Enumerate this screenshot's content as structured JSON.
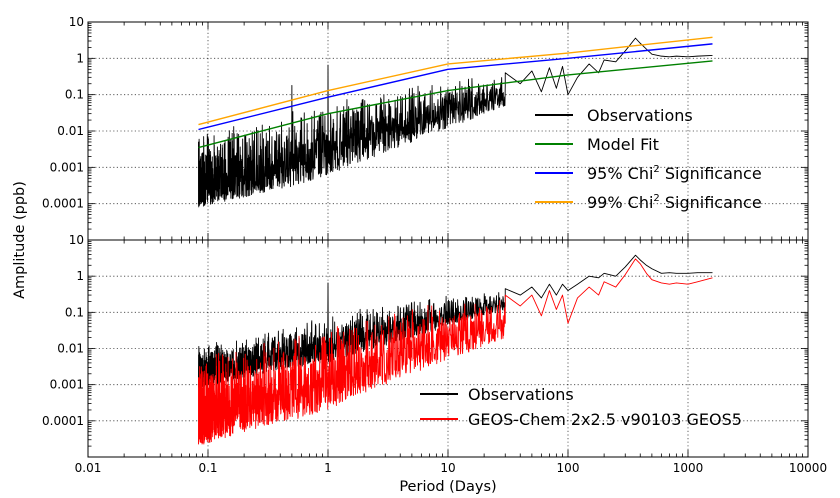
{
  "chart_data": [
    {
      "type": "line",
      "panel": "top",
      "log_x": true,
      "log_y": true,
      "xlim": [
        0.01,
        10000
      ],
      "ylim": [
        1e-05,
        10
      ],
      "grid": true,
      "x_tick_labels": [
        "0.01",
        "0.1",
        "1",
        "10",
        "100",
        "1000",
        "10000"
      ],
      "y_tick_labels": [
        "0.0001",
        "0.001",
        "0.01",
        "0.1",
        "1",
        "10"
      ],
      "xlabel": "Period (Days)",
      "ylabel": "Amplitude (ppb)",
      "legend_position": "lower-right",
      "series": [
        {
          "name": "Observations",
          "color": "#000000",
          "kind": "noisy-spectrum",
          "x_range": [
            0.0833,
            1600
          ],
          "envelope": {
            "x": [
              0.0833,
              0.2,
              0.5,
              1,
              2,
              5,
              10,
              15,
              20,
              30
            ],
            "high": [
              0.008,
              0.016,
              0.035,
              0.06,
              0.11,
              0.2,
              0.28,
              0.32,
              0.35,
              0.38
            ],
            "low": [
              8e-05,
              0.00015,
              0.0003,
              0.0006,
              0.0015,
              0.005,
              0.012,
              0.02,
              0.03,
              0.05
            ]
          },
          "spikes": [
            {
              "x": 0.5,
              "y": 0.18
            },
            {
              "x": 1.0,
              "y": 0.65
            }
          ],
          "tail": {
            "x": [
              30,
              40,
              50,
              60,
              70,
              80,
              90,
              100,
              120,
              150,
              180,
              200,
              250,
              300,
              365,
              400,
              450,
              500,
              600,
              700,
              800,
              1000,
              1200,
              1600
            ],
            "y": [
              0.4,
              0.2,
              0.45,
              0.12,
              0.55,
              0.15,
              0.6,
              0.1,
              0.3,
              0.7,
              0.4,
              0.9,
              0.8,
              1.6,
              3.6,
              2.6,
              1.8,
              1.3,
              1.15,
              1.1,
              1.15,
              1.1,
              1.15,
              1.2
            ]
          }
        },
        {
          "name": "Model Fit",
          "color": "#008000",
          "x": [
            0.0833,
            1,
            10,
            100,
            1600
          ],
          "y": [
            0.0035,
            0.03,
            0.13,
            0.35,
            0.85
          ]
        },
        {
          "name": "95% Chi² Significance",
          "legend_label_base": "95% Chi",
          "legend_label_sup": "2",
          "legend_label_tail": " Significance",
          "color": "#0000ff",
          "x": [
            0.0833,
            1,
            10,
            100,
            1600
          ],
          "y": [
            0.011,
            0.085,
            0.5,
            1.0,
            2.5
          ]
        },
        {
          "name": "99% Chi² Significance",
          "legend_label_base": "99% Chi",
          "legend_label_sup": "2",
          "legend_label_tail": " Significance",
          "color": "#ffa500",
          "x": [
            0.0833,
            1,
            10,
            100,
            1600
          ],
          "y": [
            0.015,
            0.13,
            0.7,
            1.4,
            3.8
          ]
        }
      ]
    },
    {
      "type": "line",
      "panel": "bottom",
      "log_x": true,
      "log_y": true,
      "xlim": [
        0.01,
        10000
      ],
      "ylim": [
        1e-05,
        10
      ],
      "grid": true,
      "x_tick_labels": [
        "0.01",
        "0.1",
        "1",
        "10",
        "100",
        "1000",
        "10000"
      ],
      "y_tick_labels": [
        "0.0001",
        "0.001",
        "0.01",
        "0.1",
        "1",
        "10"
      ],
      "xlabel": "Period (Days)",
      "ylabel": "Amplitude (ppb)",
      "legend_position": "lower-right",
      "series": [
        {
          "name": "Observations",
          "color": "#000000",
          "kind": "noisy-spectrum",
          "x_range": [
            0.0833,
            1600
          ],
          "envelope": {
            "x": [
              0.0833,
              0.2,
              0.5,
              1,
              2,
              5,
              10,
              15,
              20,
              30
            ],
            "high": [
              0.012,
              0.022,
              0.045,
              0.08,
              0.13,
              0.22,
              0.3,
              0.33,
              0.36,
              0.4
            ],
            "low": [
              0.0008,
              0.0015,
              0.003,
              0.004,
              0.008,
              0.02,
              0.04,
              0.06,
              0.08,
              0.1
            ]
          },
          "spikes": [
            {
              "x": 1.0,
              "y": 0.65
            }
          ],
          "tail": {
            "x": [
              30,
              40,
              50,
              60,
              70,
              80,
              90,
              100,
              120,
              150,
              180,
              200,
              250,
              300,
              365,
              400,
              450,
              500,
              600,
              700,
              800,
              1000,
              1200,
              1600
            ],
            "y": [
              0.45,
              0.3,
              0.5,
              0.25,
              0.6,
              0.3,
              0.6,
              0.4,
              0.6,
              1.0,
              0.9,
              1.2,
              1.0,
              1.8,
              3.8,
              2.8,
              2.0,
              1.6,
              1.2,
              1.25,
              1.2,
              1.2,
              1.25,
              1.25
            ]
          }
        },
        {
          "name": "GEOS-Chem 2x2.5 v90103 GEOS5",
          "color": "#ff0000",
          "kind": "noisy-spectrum",
          "x_range": [
            0.0833,
            1600
          ],
          "envelope": {
            "x": [
              0.0833,
              0.2,
              0.5,
              1,
              2,
              5,
              10,
              15,
              20,
              30
            ],
            "high": [
              0.006,
              0.012,
              0.025,
              0.05,
              0.09,
              0.16,
              0.22,
              0.25,
              0.28,
              0.3
            ],
            "low": [
              2e-05,
              5e-05,
              0.0001,
              0.0002,
              0.0006,
              0.002,
              0.005,
              0.008,
              0.012,
              0.02
            ]
          },
          "spikes": [],
          "tail": {
            "x": [
              30,
              40,
              50,
              60,
              70,
              80,
              90,
              100,
              120,
              150,
              180,
              200,
              250,
              300,
              365,
              400,
              450,
              500,
              600,
              700,
              800,
              1000,
              1200,
              1600
            ],
            "y": [
              0.3,
              0.15,
              0.3,
              0.08,
              0.4,
              0.12,
              0.3,
              0.05,
              0.25,
              0.5,
              0.3,
              0.7,
              0.5,
              1.1,
              3.0,
              2.2,
              1.2,
              0.8,
              0.65,
              0.6,
              0.65,
              0.6,
              0.7,
              0.9
            ]
          }
        }
      ]
    }
  ]
}
